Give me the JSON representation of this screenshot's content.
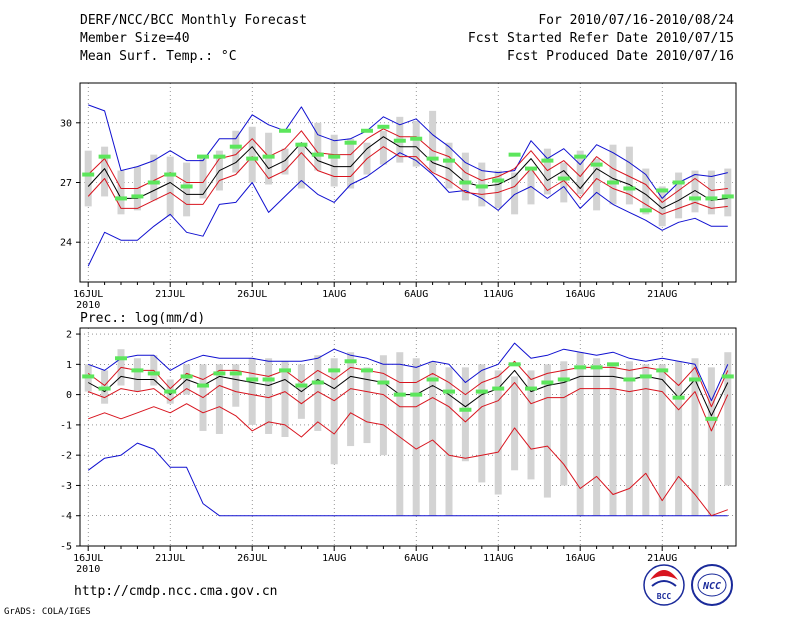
{
  "header": {
    "title": "DERF/NCC/BCC Monthly Forecast",
    "member": "Member Size=40",
    "variable": "Mean Surf. Temp.: °C",
    "period": "For 2010/07/16-2010/08/24",
    "started": "Fcst Started Refer Date 2010/07/15",
    "produced": "Fcst Produced Date 2010/07/16"
  },
  "footer": {
    "url": "http://cmdp.ncc.cma.gov.cn",
    "credit": "GrADS: COLA/IGES",
    "logo_bcc": "BCC",
    "logo_ncc": "NCC"
  },
  "colors": {
    "box": "#d3d3d3",
    "ensemble_mean": "#000000",
    "spread": "#d8141e",
    "extreme": "#1010d0",
    "median_bar": "#5ce65c",
    "grid": "#555555"
  },
  "chart_data": [
    {
      "type": "box",
      "title": "Mean Surf. Temp.: °C",
      "xlabel": "",
      "ylabel": "",
      "ylim": [
        22,
        32
      ],
      "yticks": [
        24,
        27,
        30
      ],
      "ytick_labels": [
        "24",
        "27",
        "30"
      ],
      "xlim": [
        0.5,
        40.5
      ],
      "x_tick_days": [
        1,
        6,
        11,
        16,
        21,
        26,
        31,
        36
      ],
      "x_tick_labels": [
        "16JUL",
        "21JUL",
        "26JUL",
        "1AUG",
        "6AUG",
        "11AUG",
        "16AUG",
        "21AUG"
      ],
      "x_year_label": "2010",
      "grid": true,
      "series": [
        {
          "name": "box_max",
          "values": [
            28.6,
            28.8,
            27.6,
            27.8,
            28.4,
            28.3,
            28.0,
            28.4,
            28.6,
            29.6,
            29.8,
            29.5,
            28.7,
            29.0,
            30.0,
            29.4,
            29.2,
            29.0,
            29.6,
            30.3,
            30.1,
            30.6,
            29.0,
            28.5,
            28.0,
            27.6,
            27.5,
            27.6,
            28.7,
            28.0,
            28.6,
            28.2,
            28.9,
            28.8,
            27.7,
            26.8,
            27.5,
            27.6,
            27.6,
            27.7
          ]
        },
        {
          "name": "box_min",
          "values": [
            25.8,
            26.3,
            25.4,
            25.6,
            26.1,
            25.3,
            25.3,
            26.2,
            26.6,
            27.5,
            27.0,
            26.9,
            27.4,
            26.7,
            27.6,
            26.8,
            26.7,
            27.4,
            27.9,
            28.0,
            27.8,
            27.5,
            26.7,
            26.1,
            25.8,
            25.7,
            25.4,
            25.9,
            26.4,
            26.0,
            26.4,
            25.6,
            25.9,
            25.9,
            25.4,
            24.8,
            25.2,
            25.5,
            25.4,
            25.3
          ]
        },
        {
          "name": "median",
          "values": [
            27.4,
            28.3,
            26.2,
            26.3,
            27.0,
            27.4,
            26.8,
            28.3,
            28.3,
            28.8,
            28.2,
            28.3,
            29.6,
            28.9,
            28.4,
            28.3,
            29.0,
            29.6,
            29.8,
            29.1,
            29.2,
            28.2,
            28.1,
            27.0,
            26.8,
            27.1,
            28.4,
            27.7,
            28.1,
            27.2,
            28.3,
            27.9,
            27.0,
            26.7,
            25.6,
            26.6,
            27.0,
            26.2,
            26.2,
            26.3
          ]
        },
        {
          "name": "mean",
          "values": [
            26.8,
            27.7,
            26.2,
            26.2,
            26.6,
            27.0,
            26.4,
            26.4,
            27.6,
            28.0,
            28.8,
            27.7,
            28.1,
            29.0,
            28.1,
            27.8,
            27.8,
            28.7,
            29.3,
            28.8,
            28.8,
            28.0,
            27.7,
            27.0,
            26.8,
            26.9,
            27.3,
            28.2,
            27.1,
            27.6,
            26.7,
            27.7,
            27.2,
            26.9,
            26.4,
            25.7,
            26.1,
            26.6,
            26.1,
            26.2
          ]
        },
        {
          "name": "spread_upper",
          "values": [
            27.4,
            28.2,
            26.7,
            26.7,
            27.1,
            27.5,
            27.0,
            27.0,
            28.2,
            28.4,
            29.2,
            28.3,
            28.7,
            29.6,
            28.5,
            28.4,
            28.4,
            29.2,
            29.7,
            29.3,
            29.3,
            28.6,
            28.3,
            27.5,
            27.1,
            27.3,
            27.7,
            28.6,
            27.6,
            28.1,
            27.3,
            28.3,
            27.7,
            27.3,
            26.9,
            26.0,
            26.6,
            27.2,
            26.6,
            26.7
          ]
        },
        {
          "name": "spread_lower",
          "values": [
            26.3,
            27.2,
            25.7,
            25.7,
            26.1,
            26.5,
            25.9,
            25.9,
            27.1,
            27.4,
            28.3,
            27.2,
            27.6,
            28.5,
            27.6,
            27.3,
            27.3,
            28.2,
            28.8,
            28.3,
            28.3,
            27.5,
            27.1,
            26.5,
            26.4,
            26.5,
            26.8,
            27.7,
            26.6,
            27.1,
            26.2,
            27.2,
            26.7,
            26.4,
            25.9,
            25.4,
            25.7,
            26.0,
            25.7,
            25.8
          ]
        },
        {
          "name": "member_max",
          "values": [
            30.9,
            30.6,
            27.6,
            27.8,
            28.1,
            28.6,
            28.1,
            28.1,
            29.2,
            29.2,
            30.4,
            29.9,
            29.6,
            30.8,
            29.4,
            29.1,
            29.2,
            29.6,
            30.3,
            29.9,
            30.2,
            29.4,
            28.8,
            28.0,
            27.6,
            27.5,
            27.6,
            29.1,
            28.2,
            28.7,
            27.9,
            28.9,
            28.5,
            28.0,
            27.4,
            26.2,
            27.0,
            27.4,
            27.3,
            27.5
          ]
        },
        {
          "name": "member_min",
          "values": [
            22.8,
            24.5,
            24.1,
            24.1,
            24.8,
            25.4,
            24.5,
            24.3,
            25.9,
            26.0,
            27.0,
            25.5,
            26.3,
            27.1,
            26.4,
            26.0,
            26.9,
            27.3,
            27.9,
            28.5,
            28.1,
            27.4,
            26.5,
            26.6,
            26.2,
            25.6,
            26.4,
            26.8,
            26.2,
            26.8,
            25.7,
            26.5,
            25.9,
            25.5,
            25.1,
            24.6,
            25.0,
            25.2,
            24.8,
            24.8
          ]
        }
      ]
    },
    {
      "type": "box",
      "title": "Prec.: log(mm/d)",
      "xlabel": "",
      "ylabel": "",
      "ylim": [
        -5,
        2.2
      ],
      "yticks": [
        2,
        1,
        0,
        -1,
        -2,
        -3,
        -4,
        -5
      ],
      "ytick_labels": [
        "2",
        "1",
        "0",
        "-1",
        "-2",
        "-3",
        "-4",
        "-5"
      ],
      "xlim": [
        0.5,
        40.5
      ],
      "x_tick_days": [
        1,
        6,
        11,
        16,
        21,
        26,
        31,
        36
      ],
      "x_tick_labels": [
        "16JUL",
        "21JUL",
        "26JUL",
        "1AUG",
        "6AUG",
        "11AUG",
        "16AUG",
        "21AUG"
      ],
      "x_year_label": "2010",
      "grid": true,
      "series": [
        {
          "name": "box_max",
          "values": [
            1.0,
            0.8,
            1.5,
            1.2,
            1.3,
            0.5,
            1.0,
            1.0,
            1.0,
            1.0,
            1.2,
            1.2,
            1.1,
            1.0,
            1.3,
            1.2,
            1.4,
            0.9,
            1.3,
            1.4,
            1.2,
            1.1,
            0.9,
            0.9,
            1.0,
            0.8,
            0.6,
            0.8,
            1.0,
            1.1,
            1.4,
            1.2,
            1.0,
            1.1,
            1.0,
            1.0,
            1.1,
            1.2,
            0.9,
            1.4
          ]
        },
        {
          "name": "box_min",
          "values": [
            0.1,
            -0.3,
            0.3,
            0.1,
            0.3,
            -0.3,
            0.0,
            -1.2,
            -1.3,
            -0.4,
            -1.0,
            -1.3,
            -1.4,
            -0.8,
            -1.2,
            -2.3,
            -1.7,
            -1.6,
            -2.0,
            -4.0,
            -4.0,
            -4.0,
            -4.0,
            -2.2,
            -2.9,
            -3.3,
            -2.5,
            -2.8,
            -3.4,
            -3.0,
            -4.0,
            -4.0,
            -4.0,
            -4.0,
            -4.0,
            -4.0,
            -4.0,
            -4.0,
            -4.0,
            -3.0
          ]
        },
        {
          "name": "median",
          "values": [
            0.6,
            0.2,
            1.2,
            0.8,
            0.7,
            0.1,
            0.6,
            0.3,
            0.7,
            0.7,
            0.5,
            0.5,
            0.8,
            0.3,
            0.4,
            0.8,
            1.1,
            0.8,
            0.4,
            0.0,
            0.0,
            0.5,
            0.1,
            -0.5,
            0.1,
            0.2,
            1.0,
            0.2,
            0.4,
            0.5,
            0.9,
            0.9,
            1.0,
            0.5,
            0.6,
            0.8,
            -0.1,
            0.5,
            -0.8,
            0.6
          ]
        },
        {
          "name": "mean",
          "values": [
            0.4,
            0.1,
            0.6,
            0.5,
            0.5,
            0.0,
            0.5,
            0.3,
            0.6,
            0.5,
            0.4,
            0.3,
            0.5,
            0.1,
            0.5,
            0.2,
            0.6,
            0.5,
            0.4,
            0.0,
            0.0,
            0.3,
            0.0,
            -0.4,
            0.0,
            0.2,
            0.8,
            0.1,
            0.3,
            0.4,
            0.6,
            0.6,
            0.6,
            0.5,
            0.6,
            0.5,
            -0.1,
            0.5,
            -0.7,
            0.4
          ]
        },
        {
          "name": "spread_upper",
          "values": [
            0.7,
            0.3,
            0.9,
            0.8,
            0.8,
            0.2,
            0.7,
            0.5,
            0.8,
            0.8,
            0.7,
            0.6,
            0.8,
            0.4,
            0.8,
            0.5,
            0.9,
            0.8,
            0.7,
            0.4,
            0.4,
            0.7,
            0.4,
            0.0,
            0.4,
            0.6,
            1.1,
            0.5,
            0.7,
            0.8,
            0.9,
            0.9,
            0.9,
            0.8,
            0.9,
            0.8,
            0.3,
            0.9,
            -0.4,
            0.8
          ]
        },
        {
          "name": "spread_lower",
          "values": [
            0.1,
            -0.1,
            0.2,
            0.1,
            0.2,
            -0.2,
            0.2,
            -0.1,
            0.3,
            0.1,
            0.0,
            -0.1,
            0.1,
            -0.3,
            0.1,
            -0.2,
            0.2,
            0.1,
            0.0,
            -0.4,
            -0.4,
            -0.1,
            -0.4,
            -0.9,
            -0.4,
            -0.2,
            0.4,
            -0.3,
            -0.1,
            -0.1,
            0.2,
            0.2,
            0.2,
            0.1,
            0.2,
            0.1,
            -0.5,
            0.1,
            -1.2,
            0.0
          ]
        },
        {
          "name": "member_max",
          "values": [
            1.0,
            0.8,
            1.2,
            1.3,
            1.3,
            0.8,
            1.1,
            1.3,
            1.2,
            1.2,
            1.2,
            1.1,
            1.1,
            1.1,
            1.2,
            1.5,
            1.3,
            1.2,
            1.0,
            1.0,
            0.9,
            1.1,
            1.0,
            0.4,
            0.8,
            1.0,
            1.7,
            1.2,
            1.3,
            1.5,
            1.4,
            1.3,
            1.4,
            1.2,
            1.1,
            1.2,
            1.1,
            1.0,
            -0.2,
            1.0
          ]
        },
        {
          "name": "member_min",
          "values": [
            -0.8,
            -0.6,
            -0.8,
            -0.6,
            -0.4,
            -0.6,
            -0.3,
            -0.6,
            -0.4,
            -0.7,
            -1.2,
            -0.9,
            -1.0,
            -1.4,
            -0.9,
            -1.3,
            -0.6,
            -0.9,
            -1.0,
            -1.4,
            -1.8,
            -1.5,
            -2.0,
            -2.1,
            -2.0,
            -1.9,
            -1.1,
            -1.8,
            -1.7,
            -2.3,
            -3.1,
            -2.7,
            -3.3,
            -3.1,
            -2.6,
            -3.5,
            -2.7,
            -3.3,
            -4.0,
            -3.8
          ]
        },
        {
          "name": "extreme_min",
          "values": [
            -2.5,
            -2.1,
            -2.0,
            -1.6,
            -1.8,
            -2.4,
            -2.4,
            -3.6,
            -4.0,
            -4.0,
            -4.0,
            -4.0,
            -4.0,
            -4.0,
            -4.0,
            -4.0,
            -4.0,
            -4.0,
            -4.0,
            -4.0,
            -4.0,
            -4.0,
            -4.0,
            -4.0,
            -4.0,
            -4.0,
            -4.0,
            -4.0,
            -4.0,
            -4.0,
            -4.0,
            -4.0,
            -4.0,
            -4.0,
            -4.0,
            -4.0,
            -4.0,
            -4.0,
            -4.0,
            -4.0
          ]
        }
      ]
    }
  ]
}
